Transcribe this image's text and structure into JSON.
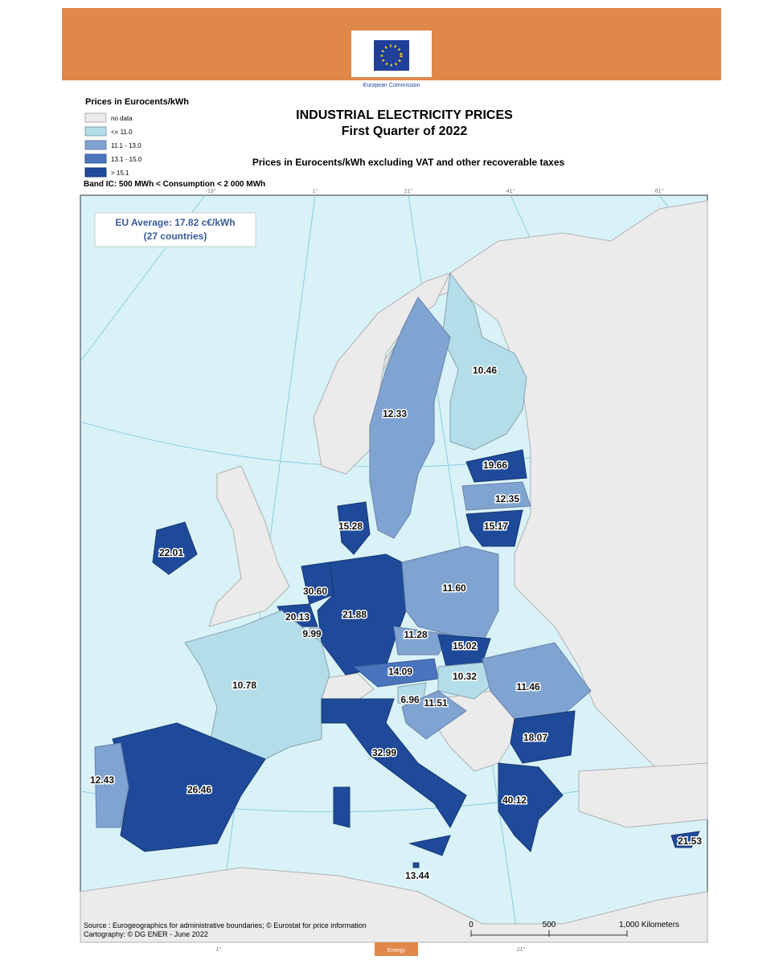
{
  "header": {
    "logo_text": "European Commission"
  },
  "legend": {
    "title": "Prices in Eurocents/kWh",
    "items": [
      "no data",
      "<= 11.0",
      "11.1 - 13.0",
      "13.1 - 15.0",
      "> 15.1"
    ]
  },
  "title": [
    "INDUSTRIAL ELECTRICITY PRICES",
    "First Quarter of 2022"
  ],
  "subtitle": "Prices in Eurocents/kWh excluding VAT and other recoverable taxes",
  "band": "Band IC: 500 MWh < Consumption < 2 000 MWh",
  "eu_average": [
    "EU Average: 17.82 c€/kWh",
    "(27 countries)"
  ],
  "graticule": {
    "top": [
      "-19°",
      "1°",
      "21°",
      "41°",
      "61°"
    ],
    "bottom": [
      "1°",
      "21°"
    ]
  },
  "regions": [
    "10.46",
    "12.33",
    "19.66",
    "12.35",
    "15.17",
    "15.28",
    "22.01",
    "30.60",
    "21.88",
    "11.60",
    "20.13",
    "9.99",
    "11.28",
    "15.02",
    "14.09",
    "10.32",
    "10.78",
    "11.46",
    "6.96",
    "11.51",
    "18.07",
    "32.99",
    "12.43",
    "26.46",
    "40.12",
    "21.53",
    "13.44"
  ],
  "source": [
    "Source : Eurogeographics for administrative boundaries; © Eurostat for price information",
    "Cartography: © DG ENER - June 2022"
  ],
  "scale": [
    "0",
    "500",
    "1,000 Kilometers"
  ],
  "footer_tab": "Energy"
}
